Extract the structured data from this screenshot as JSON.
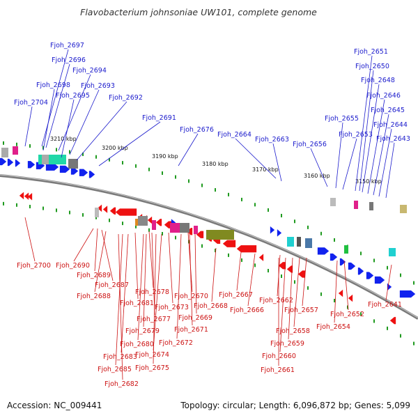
{
  "title": "Flavobacterium johnsoniae UW101, complete genome",
  "footer": {
    "accession": "Accession: NC_009441",
    "summary": "Topology: circular; Length: 6,096,872 bp; Genes: 5,099"
  },
  "colors": {
    "forward_label": "#1a1acc",
    "reverse_label": "#cc1111",
    "forward_gene": "#1122ee",
    "reverse_gene": "#ee1111",
    "backbone": "#7a7a7a",
    "tick": "#1f9a1f"
  },
  "kbp_markers": [
    "3210 kbp",
    "3200 kbp",
    "3190 kbp",
    "3180 kbp",
    "3170 kbp",
    "3160 kbp",
    "3150 kbp"
  ],
  "forward_genes": [
    "Fjoh_2697",
    "Fjoh_2696",
    "Fjoh_2694",
    "Fjoh_2698",
    "Fjoh_2693",
    "Fjoh_2695",
    "Fjoh_2692",
    "Fjoh_2704",
    "Fjoh_2691",
    "Fjoh_2676",
    "Fjoh_2664",
    "Fjoh_2663",
    "Fjoh_2656",
    "Fjoh_2655",
    "Fjoh_2653",
    "Fjoh_2651",
    "Fjoh_2650",
    "Fjoh_2648",
    "Fjoh_2646",
    "Fjoh_2645",
    "Fjoh_2644",
    "Fjoh_2643"
  ],
  "reverse_genes": [
    "Fjoh_2700",
    "Fjoh_2690",
    "Fjoh_2689",
    "Fjoh_2687",
    "Fjoh_2688",
    "Fjoh_2678",
    "Fjoh_2681",
    "Fjoh_2670",
    "Fjoh_2673",
    "Fjoh_2677",
    "Fjoh_2669",
    "Fjoh_2679",
    "Fjoh_2671",
    "Fjoh_2680",
    "Fjoh_2672",
    "Fjoh_2674",
    "Fjoh_2683",
    "Fjoh_2685",
    "Fjoh_2675",
    "Fjoh_2682",
    "Fjoh_2668",
    "Fjoh_2667",
    "Fjoh_2666",
    "Fjoh_2662",
    "Fjoh_2657",
    "Fjoh_2658",
    "Fjoh_2659",
    "Fjoh_2660",
    "Fjoh_2661",
    "Fjoh_2652",
    "Fjoh_2654",
    "Fjoh_2641"
  ]
}
